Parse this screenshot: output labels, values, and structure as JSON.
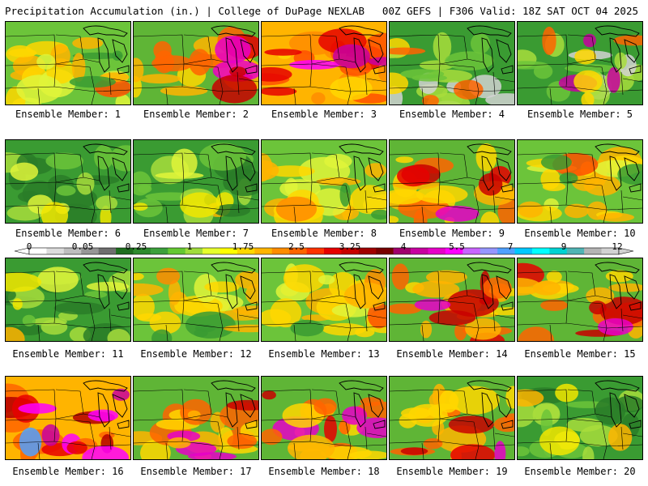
{
  "header": {
    "title_left": "Precipitation Accumulation (in.) | College of DuPage NEXLAB",
    "title_right": "00Z GEFS | F306 Valid: 18Z SAT OCT 04 2025"
  },
  "members": [
    {
      "label": "Ensemble Member: 1",
      "theme": "moderate"
    },
    {
      "label": "Ensemble Member: 2",
      "theme": "heavy-se"
    },
    {
      "label": "Ensemble Member: 3",
      "theme": "heavy-n"
    },
    {
      "label": "Ensemble Member: 4",
      "theme": "dry-nw"
    },
    {
      "label": "Ensemble Member: 5",
      "theme": "dry-nw"
    },
    {
      "label": "Ensemble Member: 6",
      "theme": "green"
    },
    {
      "label": "Ensemble Member: 7",
      "theme": "green"
    },
    {
      "label": "Ensemble Member: 8",
      "theme": "moderate"
    },
    {
      "label": "Ensemble Member: 9",
      "theme": "heavy-se"
    },
    {
      "label": "Ensemble Member: 10",
      "theme": "moderate"
    },
    {
      "label": "Ensemble Member: 11",
      "theme": "green"
    },
    {
      "label": "Ensemble Member: 12",
      "theme": "moderate"
    },
    {
      "label": "Ensemble Member: 13",
      "theme": "moderate"
    },
    {
      "label": "Ensemble Member: 14",
      "theme": "heavy-se"
    },
    {
      "label": "Ensemble Member: 15",
      "theme": "heavy-se"
    },
    {
      "label": "Ensemble Member: 16",
      "theme": "extreme"
    },
    {
      "label": "Ensemble Member: 17",
      "theme": "heavy-se"
    },
    {
      "label": "Ensemble Member: 18",
      "theme": "heavy-se"
    },
    {
      "label": "Ensemble Member: 19",
      "theme": "heavy-se"
    },
    {
      "label": "Ensemble Member: 20",
      "theme": "green"
    }
  ],
  "colorbar": {
    "tick_labels": [
      "0",
      "0.05",
      "0.25",
      "1",
      "1.75",
      "2.5",
      "3.25",
      "4",
      "5.5",
      "7",
      "9",
      "12"
    ],
    "colors": [
      "#ffffff",
      "#dcdcdc",
      "#bebebe",
      "#969696",
      "#6e6e6e",
      "#1e6e1e",
      "#2e8b2e",
      "#3ca03c",
      "#64c832",
      "#a0dc3c",
      "#e6ff2d",
      "#ffff00",
      "#ffd700",
      "#ffb400",
      "#ff8c00",
      "#ff6400",
      "#ff3200",
      "#e60000",
      "#c80000",
      "#a00000",
      "#780000",
      "#a0006e",
      "#c800a0",
      "#e600c8",
      "#ff00ff",
      "#c864ff",
      "#9696ff",
      "#50a0ff",
      "#00c8ff",
      "#00ffff",
      "#00d2d2",
      "#50b4b4",
      "#b4b4b4",
      "#d2d2d2"
    ]
  }
}
